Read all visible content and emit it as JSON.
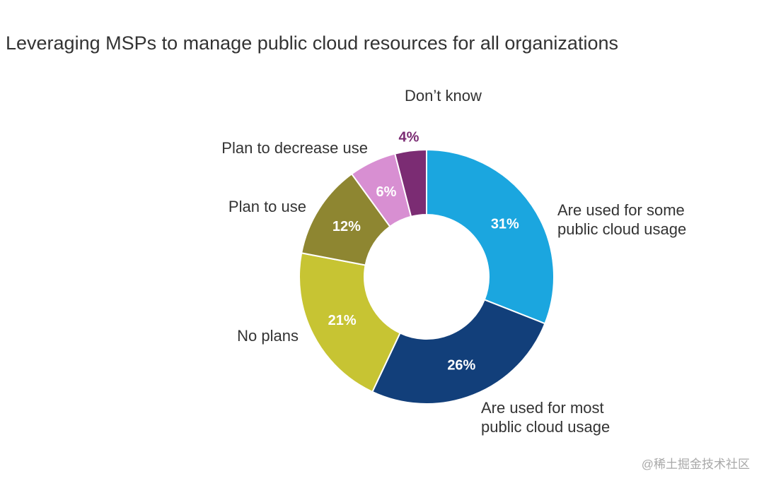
{
  "chart_data": {
    "type": "pie",
    "title": "Leveraging MSPs to manage public cloud resources for all organizations",
    "donut": true,
    "unit": "%",
    "slices": [
      {
        "label": "Are used for some public cloud usage",
        "value": 31,
        "display": "31%",
        "color": "#1ba6df",
        "text_color": "#ffffff"
      },
      {
        "label": "Are used for most public cloud usage",
        "value": 26,
        "display": "26%",
        "color": "#123f7a",
        "text_color": "#ffffff"
      },
      {
        "label": "No plans",
        "value": 21,
        "display": "21%",
        "color": "#c7c433",
        "text_color": "#ffffff"
      },
      {
        "label": "Plan to use",
        "value": 12,
        "display": "12%",
        "color": "#8e8631",
        "text_color": "#ffffff"
      },
      {
        "label": "Plan to decrease use",
        "value": 6,
        "display": "6%",
        "color": "#d88fd2",
        "text_color": "#ffffff"
      },
      {
        "label": "Don’t know",
        "value": 4,
        "display": "4%",
        "color": "#7b2c73",
        "text_color": "#7b2c73"
      }
    ]
  },
  "watermark": "@稀土掘金技术社区"
}
